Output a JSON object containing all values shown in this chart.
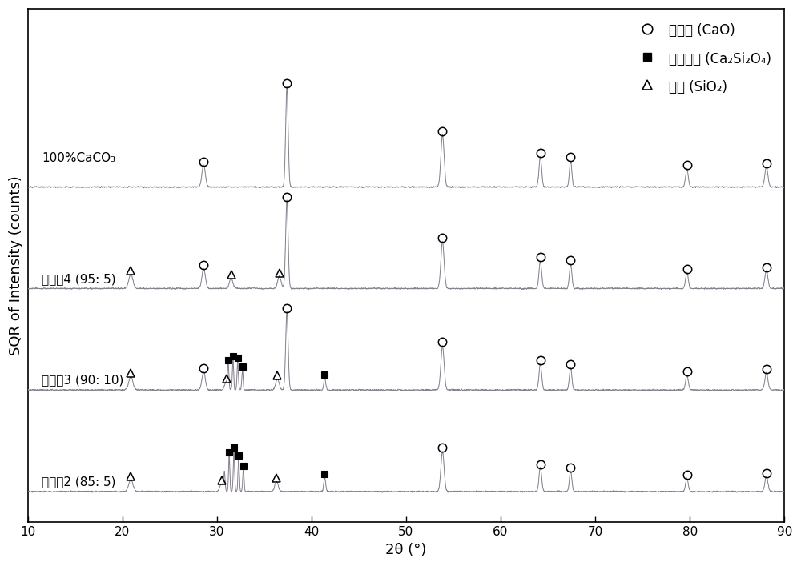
{
  "xlabel": "2θ (°)",
  "ylabel": "SQR of Intensity (counts)",
  "xlim": [
    10,
    90
  ],
  "ylim": [
    0.5,
    4.8
  ],
  "background_color": "#ffffff",
  "legend_labels": [
    "氧化馒 (CaO)",
    "硅酸二馒 (Ca₂Si₂O₄)",
    "石英 (SiO₂)"
  ],
  "sample_labels": [
    "100%CaCO₃",
    "实施例4 (95: 5)",
    "实施例3 (90: 10)",
    "实施例2 (85: 5)"
  ],
  "offsets": [
    3.3,
    2.45,
    1.6,
    0.75
  ],
  "line_color": "#a090a8",
  "line_color2": "#706878",
  "xticks": [
    10,
    20,
    30,
    40,
    50,
    60,
    70,
    80,
    90
  ]
}
